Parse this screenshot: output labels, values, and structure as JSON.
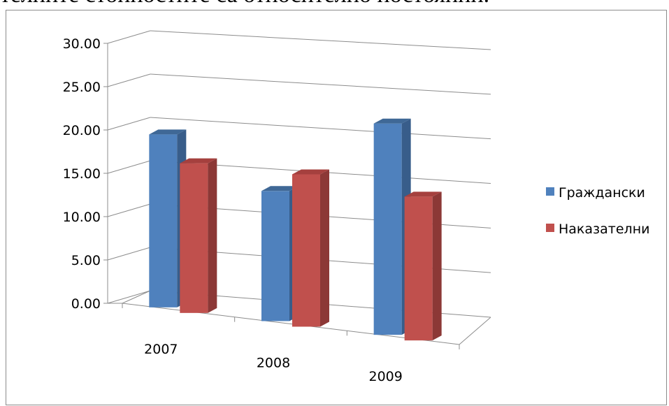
{
  "document": {
    "clipped_text": "телните стойностите са относително постоянни."
  },
  "chart_data": {
    "type": "bar",
    "categories": [
      "2007",
      "2008",
      "2009"
    ],
    "series": [
      {
        "name": "Граждански",
        "values": [
          20.8,
          15.2,
          24.1
        ],
        "color": "#4f81bd",
        "side_color": "#385d8a",
        "top_color": "#3f6896"
      },
      {
        "name": "Наказателни",
        "values": [
          18.0,
          17.8,
          16.4
        ],
        "color": "#c0504d",
        "side_color": "#8c3836",
        "top_color": "#a5403e"
      }
    ],
    "ylim": [
      0,
      30
    ],
    "ytick_labels": [
      "0.00",
      "5.00",
      "10.00",
      "15.00",
      "20.00",
      "25.00",
      "30.00"
    ],
    "title": "",
    "xlabel": "",
    "ylabel": "",
    "grid": true,
    "legend_position": "right"
  }
}
